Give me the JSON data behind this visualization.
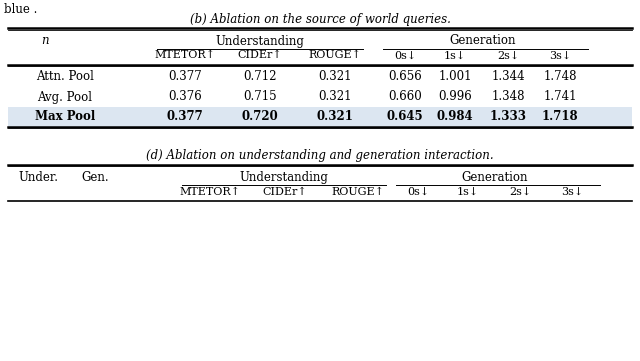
{
  "title_b": "(b) Ablation on the source of world queries.",
  "title_d": "(d) Ablation on understanding and generation interaction.",
  "top_text": "blue .",
  "header_group1": "Understanding",
  "header_group2": "Generation",
  "col_headers": [
    "MTETOR↑",
    "CIDEr↑",
    "ROUGE↑",
    "0s↓",
    "1s↓",
    "2s↓",
    "3s↓"
  ],
  "row_label_col": "n",
  "rows_b": [
    {
      "label": "Attn. Pool",
      "values": [
        "0.377",
        "0.712",
        "0.321",
        "0.656",
        "1.001",
        "1.344",
        "1.748"
      ],
      "bold": false,
      "highlight": false
    },
    {
      "label": "Avg. Pool",
      "values": [
        "0.376",
        "0.715",
        "0.321",
        "0.660",
        "0.996",
        "1.348",
        "1.741"
      ],
      "bold": false,
      "highlight": false
    },
    {
      "label": "Max Pool",
      "values": [
        "0.377",
        "0.720",
        "0.321",
        "0.645",
        "0.984",
        "1.333",
        "1.718"
      ],
      "bold": true,
      "highlight": true
    }
  ],
  "highlight_color": "#dce6f1",
  "background_color": "#ffffff",
  "font_size": 8.5,
  "title_font_size": 8.5
}
